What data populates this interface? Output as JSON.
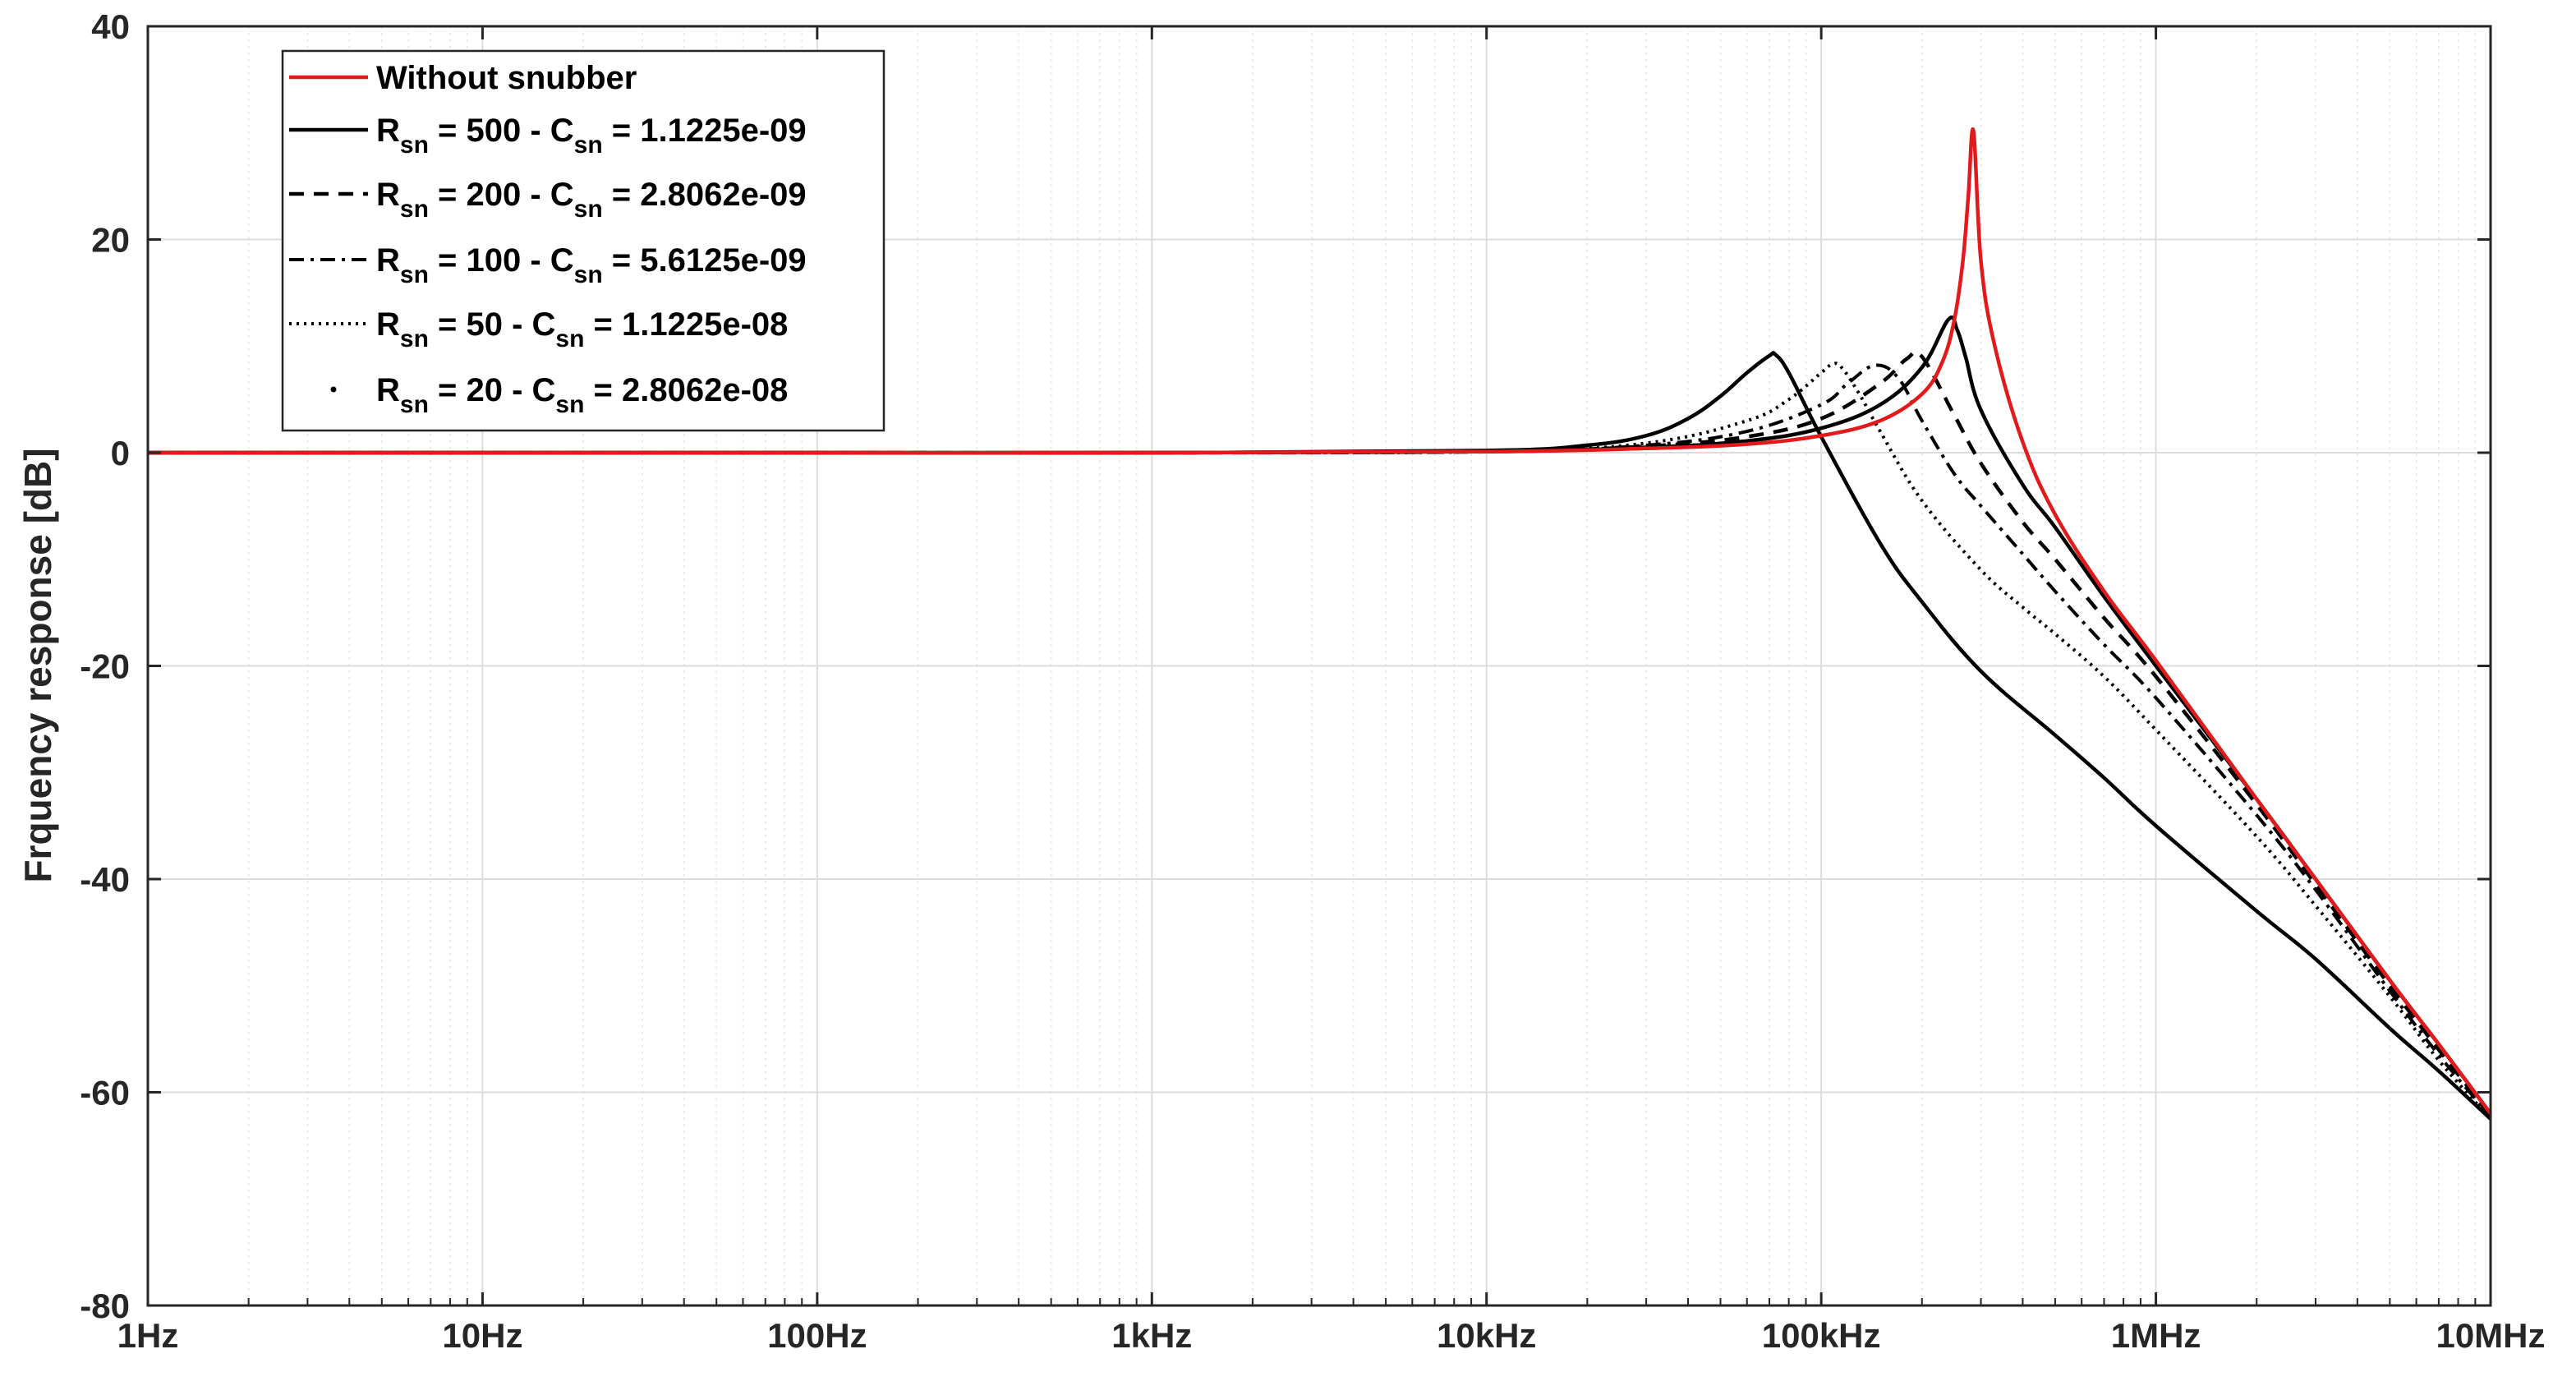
{
  "chart_data": {
    "type": "line",
    "xscale": "log",
    "xlim": [
      1,
      10000000
    ],
    "ylim": [
      -80,
      40
    ],
    "grid": true,
    "xlabel": "",
    "ylabel": "Frquency response [dB]",
    "xticks": [
      {
        "value": 1,
        "label": "1Hz"
      },
      {
        "value": 10,
        "label": "10Hz"
      },
      {
        "value": 100,
        "label": "100Hz"
      },
      {
        "value": 1000,
        "label": "1kHz"
      },
      {
        "value": 10000,
        "label": "10kHz"
      },
      {
        "value": 100000,
        "label": "100kHz"
      },
      {
        "value": 1000000,
        "label": "1MHz"
      },
      {
        "value": 10000000,
        "label": "10MHz"
      }
    ],
    "yticks": [
      {
        "value": 40,
        "label": "40"
      },
      {
        "value": 20,
        "label": "20"
      },
      {
        "value": 0,
        "label": "0"
      },
      {
        "value": -20,
        "label": "-20"
      },
      {
        "value": -40,
        "label": "-40"
      },
      {
        "value": -60,
        "label": "-60"
      },
      {
        "value": -80,
        "label": "-80"
      }
    ],
    "legend_position": "top-left",
    "series": [
      {
        "legend": {
          "main": "Without snubber"
        },
        "color": "#e31a1c",
        "line_style": "solid",
        "x": [
          1,
          10,
          100,
          1000,
          10000,
          30000,
          60000,
          100000,
          150000,
          200000,
          230000,
          250000,
          265000,
          275000,
          285000,
          300000,
          330000,
          400000,
          500000,
          700000,
          1000000,
          2000000,
          3000000,
          5000000,
          7000000,
          10000000
        ],
        "y": [
          0,
          0,
          0,
          0,
          0.1,
          0.4,
          0.8,
          1.6,
          3.0,
          5.5,
          8.5,
          12.5,
          18.0,
          24.0,
          30.2,
          18.0,
          10.0,
          1.0,
          -5.8,
          -13.0,
          -19.5,
          -32.5,
          -40.0,
          -49.5,
          -55.5,
          -62.0
        ]
      },
      {
        "legend": {
          "r": "R",
          "r_sub": "sn",
          "mid": " = 500 - C",
          "c_sub": "sn",
          "tail": " = 1.1225e-09"
        },
        "color": "#000000",
        "line_style": "solid",
        "x": [
          1,
          10,
          100,
          1000,
          10000,
          30000,
          60000,
          100000,
          150000,
          200000,
          240000,
          255000,
          270000,
          300000,
          400000,
          500000,
          700000,
          1000000,
          2000000,
          3000000,
          5000000,
          7000000,
          10000000
        ],
        "y": [
          0,
          0,
          0,
          0,
          0.1,
          0.5,
          1.1,
          2.3,
          4.5,
          8.0,
          12.5,
          11.5,
          9.0,
          4.0,
          -3.0,
          -7.0,
          -13.5,
          -20.0,
          -32.5,
          -40.0,
          -49.5,
          -55.5,
          -62.0
        ]
      },
      {
        "legend": {
          "r": "R",
          "r_sub": "sn",
          "mid": " = 200 - C",
          "c_sub": "sn",
          "tail": " = 2.8062e-09"
        },
        "color": "#000000",
        "line_style": "dashed",
        "x": [
          1,
          10,
          100,
          1000,
          10000,
          30000,
          60000,
          100000,
          150000,
          180000,
          200000,
          250000,
          300000,
          400000,
          500000,
          700000,
          1000000,
          2000000,
          3000000,
          5000000,
          7000000,
          10000000
        ],
        "y": [
          0,
          0,
          0,
          0,
          0.1,
          0.6,
          1.5,
          3.2,
          6.5,
          8.8,
          9.0,
          3.5,
          -1.0,
          -6.5,
          -10.0,
          -15.5,
          -21.0,
          -33.0,
          -40.5,
          -50.0,
          -56.0,
          -62.2
        ]
      },
      {
        "legend": {
          "r": "R",
          "r_sub": "sn",
          "mid": " = 100 - C",
          "c_sub": "sn",
          "tail": " = 5.6125e-09"
        },
        "color": "#000000",
        "line_style": "dashdot",
        "x": [
          1,
          10,
          100,
          1000,
          10000,
          30000,
          60000,
          100000,
          120000,
          145000,
          170000,
          200000,
          250000,
          300000,
          400000,
          500000,
          700000,
          1000000,
          2000000,
          3000000,
          5000000,
          7000000,
          10000000
        ],
        "y": [
          0,
          0,
          0,
          0,
          0.1,
          0.7,
          2.0,
          4.5,
          6.5,
          8.2,
          7.0,
          3.0,
          -2.0,
          -5.0,
          -9.5,
          -13.0,
          -18.0,
          -23.0,
          -34.0,
          -41.0,
          -50.5,
          -56.5,
          -62.3
        ]
      },
      {
        "legend": {
          "r": "R",
          "r_sub": "sn",
          "mid": " = 50  -  C",
          "c_sub": "sn",
          "tail": " = 1.1225e-08"
        },
        "color": "#000000",
        "line_style": "dotted",
        "x": [
          1,
          10,
          100,
          1000,
          10000,
          30000,
          60000,
          80000,
          100000,
          108000,
          115000,
          130000,
          150000,
          200000,
          300000,
          400000,
          500000,
          700000,
          1000000,
          2000000,
          3000000,
          5000000,
          7000000,
          10000000
        ],
        "y": [
          0,
          0,
          0,
          0,
          0.1,
          0.9,
          3.0,
          5.0,
          7.5,
          8.3,
          8.0,
          5.5,
          2.0,
          -4.5,
          -11.0,
          -14.5,
          -17.0,
          -21.0,
          -26.0,
          -36.0,
          -42.5,
          -51.0,
          -57.0,
          -62.5
        ]
      },
      {
        "legend": {
          "r": "R",
          "r_sub": "sn",
          "mid": " = 20  -  C",
          "c_sub": "sn",
          "tail": " = 2.8062e-08"
        },
        "color": "#000000",
        "line_style": "solid",
        "x": [
          1,
          10,
          100,
          1000,
          10000,
          20000,
          30000,
          40000,
          50000,
          60000,
          70000,
          73000,
          80000,
          100000,
          150000,
          200000,
          300000,
          500000,
          700000,
          1000000,
          2000000,
          3000000,
          5000000,
          7000000,
          10000000
        ],
        "y": [
          0,
          0,
          0,
          0,
          0.2,
          0.7,
          1.6,
          3.2,
          5.3,
          7.5,
          9.1,
          9.2,
          7.5,
          1.5,
          -8.5,
          -14.0,
          -20.5,
          -26.5,
          -30.5,
          -35.0,
          -43.0,
          -47.5,
          -54.0,
          -58.0,
          -62.5
        ]
      }
    ]
  }
}
